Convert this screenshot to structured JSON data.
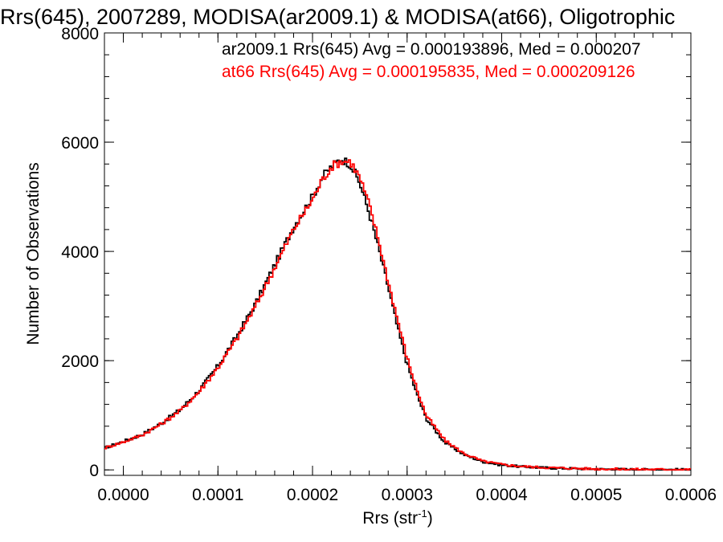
{
  "chart_data": {
    "type": "line",
    "title": "Rrs(645), 2007289, MODISA(ar2009.1) & MODISA(at66), Oligotrophic",
    "xlabel_main": "Rrs (str",
    "xlabel_sup": "-1",
    "xlabel_end": ")",
    "ylabel": "Number of Observations",
    "xlim": [
      -2e-05,
      0.0006
    ],
    "ylim": [
      -100,
      8000
    ],
    "x_ticks": [
      0.0,
      0.0001,
      0.0002,
      0.0003,
      0.0004,
      0.0005,
      0.0006
    ],
    "x_tick_labels": [
      "0.0000",
      "0.0001",
      "0.0002",
      "0.0003",
      "0.0004",
      "0.0005",
      "0.0006"
    ],
    "y_ticks": [
      0,
      2000,
      4000,
      6000,
      8000
    ],
    "y_tick_labels": [
      "0",
      "2000",
      "4000",
      "6000",
      "8000"
    ],
    "grid": false,
    "legend_position": "top-right",
    "series": [
      {
        "name": "ar2009.1",
        "legend_label": "ar2009.1 Rrs(645) Avg = 0.000193896, Med = 0.000207",
        "color": "#000000",
        "x": [
          -2e-05,
          0.0,
          2e-05,
          4e-05,
          6e-05,
          8e-05,
          0.0001,
          0.00012,
          0.00014,
          0.00016,
          0.00018,
          0.0002,
          0.00021,
          0.00022,
          0.00023,
          0.00024,
          0.00025,
          0.00026,
          0.00027,
          0.00028,
          0.00029,
          0.0003,
          0.00031,
          0.00032,
          0.00034,
          0.00036,
          0.00038,
          0.0004,
          0.00042,
          0.00045,
          0.0005,
          0.00055,
          0.0006
        ],
        "y": [
          400,
          520,
          650,
          850,
          1100,
          1450,
          1900,
          2450,
          3050,
          3750,
          4450,
          5000,
          5350,
          5550,
          5700,
          5600,
          5250,
          4700,
          4050,
          3350,
          2600,
          1950,
          1400,
          950,
          500,
          280,
          150,
          90,
          60,
          35,
          15,
          8,
          5
        ]
      },
      {
        "name": "at66",
        "legend_label": "at66 Rrs(645) Avg = 0.000195835, Med = 0.000209126",
        "color": "#ff0000",
        "x": [
          -2e-05,
          0.0,
          2e-05,
          4e-05,
          6e-05,
          8e-05,
          0.0001,
          0.00012,
          0.00014,
          0.00016,
          0.00018,
          0.0002,
          0.00021,
          0.00022,
          0.00023,
          0.00024,
          0.00025,
          0.00026,
          0.00027,
          0.00028,
          0.00029,
          0.0003,
          0.00031,
          0.00032,
          0.00034,
          0.00036,
          0.00038,
          0.0004,
          0.00042,
          0.00045,
          0.0005,
          0.00055,
          0.0006
        ],
        "y": [
          400,
          510,
          640,
          840,
          1080,
          1430,
          1870,
          2400,
          3000,
          3700,
          4400,
          4950,
          5300,
          5550,
          5650,
          5650,
          5350,
          4850,
          4200,
          3450,
          2750,
          2050,
          1500,
          1000,
          540,
          300,
          160,
          100,
          65,
          40,
          18,
          10,
          6
        ]
      }
    ]
  }
}
